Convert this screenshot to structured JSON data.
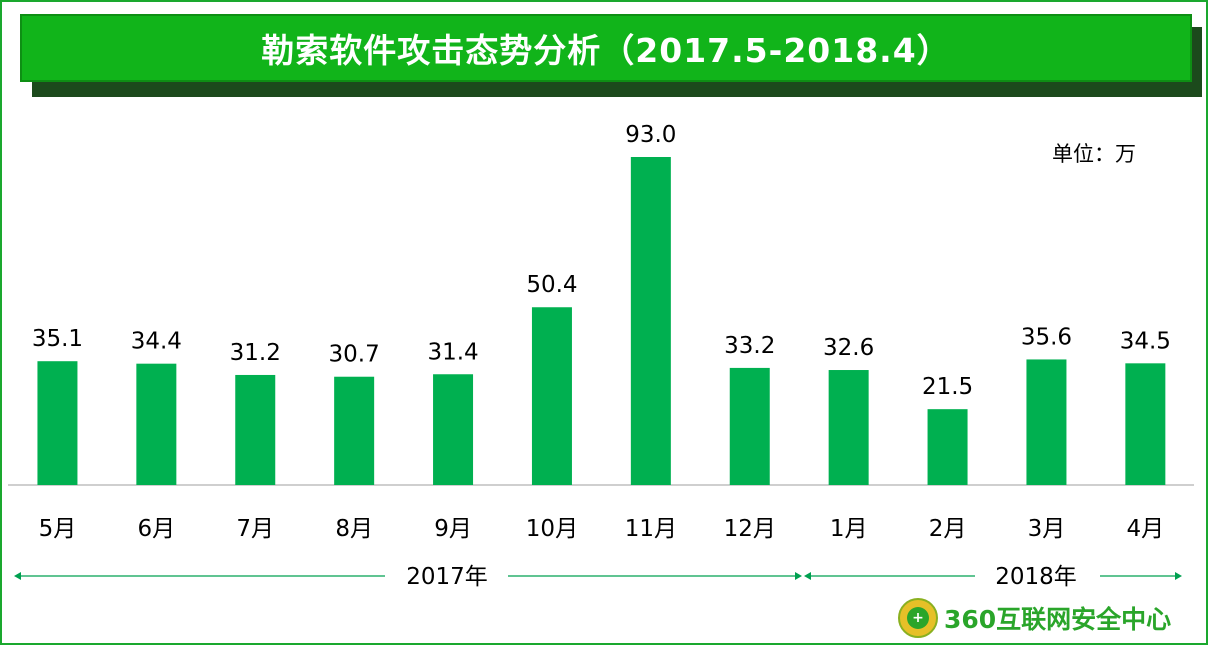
{
  "chart_data": {
    "type": "bar",
    "title": "勒索软件攻击态势分析（2017.5-2018.4）",
    "unit_label": "单位：万",
    "categories": [
      "5月",
      "6月",
      "7月",
      "8月",
      "9月",
      "10月",
      "11月",
      "12月",
      "1月",
      "2月",
      "3月",
      "4月"
    ],
    "values": [
      35.1,
      34.4,
      31.2,
      30.7,
      31.4,
      50.4,
      93.0,
      33.2,
      32.6,
      21.5,
      35.6,
      34.5
    ],
    "value_labels": [
      "35.1",
      "34.4",
      "31.2",
      "30.7",
      "31.4",
      "50.4",
      "93.0",
      "33.2",
      "32.6",
      "21.5",
      "35.6",
      "34.5"
    ],
    "year_groups": [
      {
        "label": "2017年",
        "start": 0,
        "end": 7
      },
      {
        "label": "2018年",
        "start": 8,
        "end": 11
      }
    ],
    "ylim": [
      0,
      93.0
    ],
    "grid": false,
    "bar_color": "#00b050"
  },
  "branding": {
    "logo_text": "360互联网安全中心",
    "logo_mark": "+"
  }
}
